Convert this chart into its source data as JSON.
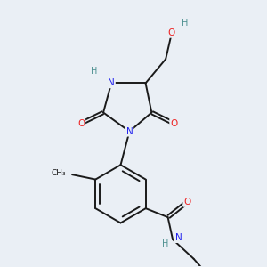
{
  "background_color": "#eaeff5",
  "atom_colors": {
    "C": "#1a1a1a",
    "N": "#2222ee",
    "O": "#ee2222",
    "H": "#4d9090"
  },
  "bond_color": "#1a1a1a",
  "bond_width": 1.4
}
